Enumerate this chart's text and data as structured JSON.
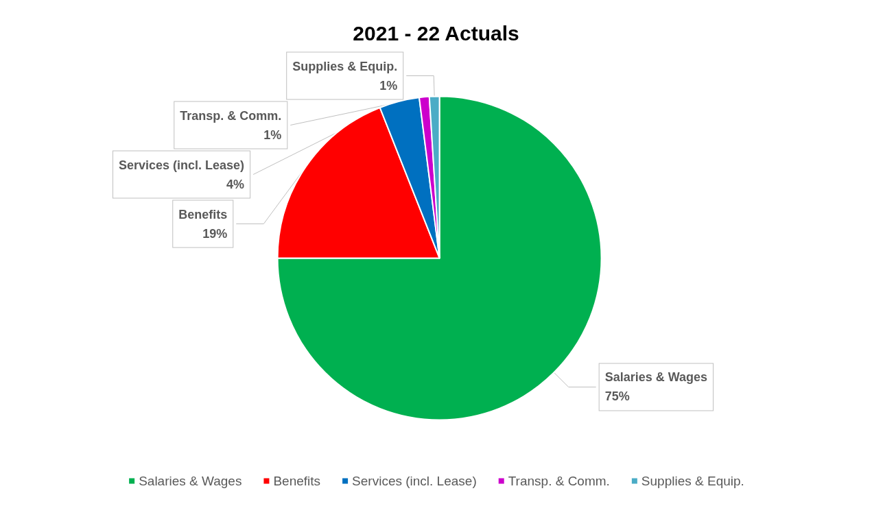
{
  "chart_data": {
    "type": "pie",
    "title": "2021 - 22 Actuals",
    "categories": [
      "Salaries & Wages",
      "Benefits",
      "Services (incl. Lease)",
      "Transp. & Comm.",
      "Supplies & Equip."
    ],
    "values": [
      75,
      19,
      4,
      1,
      1
    ],
    "value_labels": [
      "75%",
      "19%",
      "4%",
      "1%",
      "1%"
    ],
    "colors": [
      "#00b050",
      "#ff0000",
      "#0070c0",
      "#cc00cc",
      "#4bacc6"
    ],
    "legend": "bottom"
  }
}
